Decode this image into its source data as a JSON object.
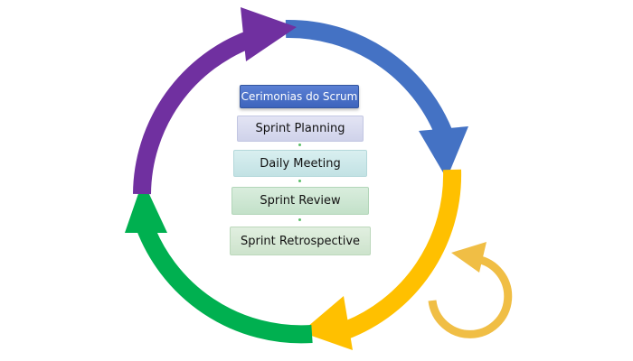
{
  "diagram": {
    "title_box": "Cerimonias do Scrum",
    "steps": [
      {
        "label": "Sprint Planning"
      },
      {
        "label": "Daily Meeting"
      },
      {
        "label": "Sprint Review"
      },
      {
        "label": "Sprint Retrospective"
      }
    ],
    "colors": {
      "arrow_blue": "#4472c4",
      "arrow_yellow": "#ffc000",
      "arrow_green": "#00b050",
      "arrow_purple": "#7030a0",
      "small_loop": "#f0be45"
    },
    "icons": [
      "cycle-arrows",
      "small-refresh-arrow"
    ]
  }
}
